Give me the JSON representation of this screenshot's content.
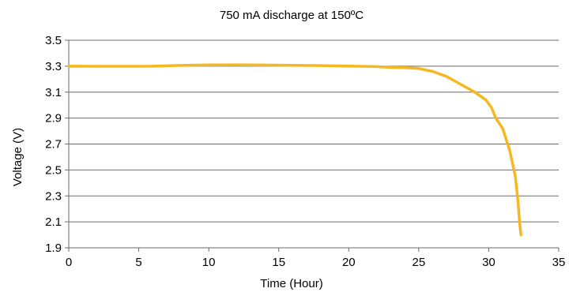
{
  "chart_data": {
    "type": "line",
    "title": "750 mA discharge at 150ºC",
    "xlabel": "Time (Hour)",
    "ylabel": "Voltage (V)",
    "xlim": [
      0,
      35
    ],
    "ylim": [
      1.9,
      3.5
    ],
    "x_ticks": [
      "0",
      "5",
      "10",
      "15",
      "20",
      "25",
      "30",
      "35"
    ],
    "y_ticks": [
      "3.5",
      "3.3",
      "3.1",
      "2.9",
      "2.7",
      "2.5",
      "2.3",
      "2.1",
      "1.9"
    ],
    "grid": "horizontal",
    "legend": "none",
    "series": [
      {
        "color": "#f5b820",
        "x": [
          0,
          2,
          4,
          6,
          8,
          10,
          12,
          14,
          16,
          18,
          20,
          22,
          23,
          24,
          25,
          26,
          27,
          28,
          29,
          29.8,
          30.2,
          30.5,
          31.0,
          31.5,
          31.9,
          32.1,
          32.2,
          32.3
        ],
        "y": [
          3.3,
          3.299,
          3.299,
          3.3,
          3.306,
          3.31,
          3.311,
          3.309,
          3.307,
          3.305,
          3.301,
          3.297,
          3.29,
          3.288,
          3.282,
          3.26,
          3.22,
          3.16,
          3.1,
          3.04,
          2.98,
          2.9,
          2.82,
          2.65,
          2.45,
          2.25,
          2.1,
          2.0
        ]
      }
    ]
  }
}
